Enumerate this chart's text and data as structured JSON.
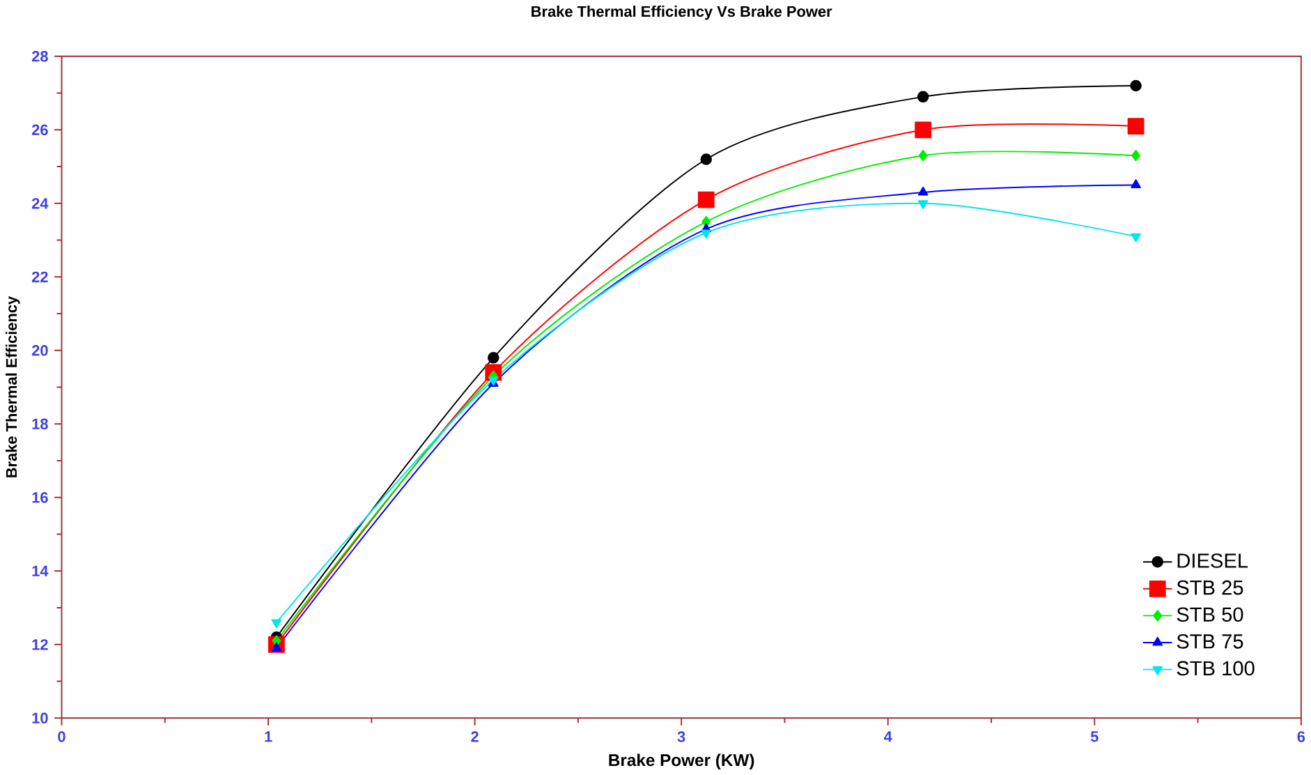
{
  "chart_data": {
    "type": "line",
    "title": "Brake Thermal Efficiency Vs  Brake Power",
    "xlabel": "Brake Power (KW)",
    "ylabel": "Brake Thermal Efficiency",
    "x": [
      1.04,
      2.09,
      3.12,
      4.17,
      5.2
    ],
    "series": [
      {
        "name": "DIESEL",
        "color": "#000000",
        "marker": "circle",
        "values": [
          12.2,
          19.8,
          25.2,
          26.9,
          27.2
        ]
      },
      {
        "name": "STB 25",
        "color": "#ff0000",
        "marker": "square",
        "values": [
          12.0,
          19.4,
          24.1,
          26.0,
          26.1
        ]
      },
      {
        "name": "STB 50",
        "color": "#00ee00",
        "marker": "diamond",
        "values": [
          12.1,
          19.3,
          23.5,
          25.3,
          25.3
        ]
      },
      {
        "name": "STB 75",
        "color": "#0000ff",
        "marker": "triangle",
        "values": [
          11.9,
          19.1,
          23.3,
          24.3,
          24.5
        ]
      },
      {
        "name": "STB 100",
        "color": "#00e5ee",
        "marker": "triangle down",
        "values": [
          12.6,
          19.2,
          23.2,
          24.0,
          23.1
        ]
      }
    ],
    "xlim": [
      0,
      6
    ],
    "ylim": [
      10,
      28
    ],
    "xticks": [
      0,
      1,
      2,
      3,
      4,
      5,
      6
    ],
    "yticks": [
      10,
      12,
      14,
      16,
      18,
      20,
      22,
      24,
      26,
      28
    ],
    "legend": "bottom right",
    "grid": false,
    "line_style": "solid"
  }
}
